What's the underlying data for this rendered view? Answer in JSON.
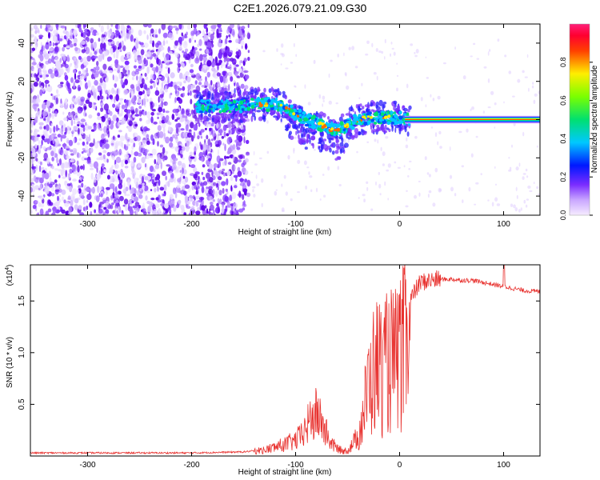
{
  "title": "C2E1.2026.079.21.09.G30",
  "colors": {
    "line": "#e8322f",
    "track": "#7a2cff",
    "ridge_hot": "#ff2a00",
    "ridge_mid": "#00e060"
  },
  "chart_data": [
    {
      "type": "heatmap",
      "xlabel": "Height of straight line (km)",
      "ylabel": "Frequency (Hz)",
      "xlim": [
        -355,
        135
      ],
      "ylim": [
        -50,
        50
      ],
      "xticks": [
        -300,
        -200,
        -100,
        0,
        100
      ],
      "yticks": [
        -40,
        -20,
        0,
        20,
        40
      ],
      "noise_region_x": [
        -355,
        -145
      ],
      "ridge": {
        "x": [
          -195,
          -180,
          -165,
          -150,
          -140,
          -130,
          -120,
          -110,
          -100,
          -90,
          -80,
          -70,
          -60,
          -50,
          -40,
          -30,
          -20,
          -10,
          0,
          10,
          50,
          100,
          135
        ],
        "y": [
          7,
          7,
          7,
          7,
          8,
          8,
          8,
          6,
          3,
          0,
          -2,
          -4,
          -6,
          -3,
          0,
          1,
          1,
          1,
          1,
          0,
          0,
          0,
          0
        ]
      },
      "colorbar": {
        "label": "Normalized spectral amplitude",
        "range": [
          0,
          1
        ],
        "ticks": [
          "0.0",
          "0.2",
          "0.4",
          "0.6",
          "0.8"
        ]
      }
    },
    {
      "type": "line",
      "xlabel": "Height of straight line (km)",
      "ylabel": "SNR (10 * v/v)",
      "scale_note": "(x10",
      "scale_exp": "4",
      "xlim": [
        -355,
        135
      ],
      "ylim": [
        0,
        18500
      ],
      "xticks": [
        -300,
        -200,
        -100,
        0,
        100
      ],
      "yticks": [
        {
          "value": 5000,
          "label": "0.5"
        },
        {
          "value": 10000,
          "label": "1.0"
        },
        {
          "value": 15000,
          "label": "1.5"
        }
      ],
      "series": [
        {
          "x": [
            -355,
            -300,
            -250,
            -200,
            -150,
            -130,
            -120,
            -110,
            -100,
            -95,
            -90,
            -85,
            -80,
            -75,
            -70,
            -65,
            -60,
            -55,
            -50,
            -45,
            -40,
            -35,
            -30,
            -25,
            -20,
            -15,
            -10,
            -5,
            0,
            5,
            10,
            15,
            20,
            30,
            40,
            50,
            60,
            70,
            80,
            90,
            100,
            110,
            120,
            135
          ],
          "y": [
            300,
            300,
            300,
            300,
            400,
            600,
            900,
            1200,
            1600,
            2000,
            2800,
            3800,
            4200,
            3600,
            2200,
            1200,
            800,
            500,
            600,
            1200,
            2200,
            5500,
            9000,
            11000,
            12000,
            11000,
            12500,
            12000,
            13000,
            14000,
            15000,
            16000,
            16800,
            17000,
            17100,
            17100,
            17000,
            17000,
            16800,
            16600,
            16400,
            16200,
            16000,
            15900
          ]
        }
      ]
    }
  ]
}
